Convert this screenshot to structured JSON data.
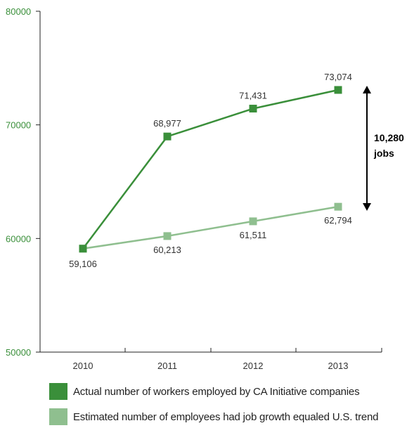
{
  "chart_data": {
    "type": "line",
    "categories": [
      "2010",
      "2011",
      "2012",
      "2013"
    ],
    "ylim": [
      50000,
      80000
    ],
    "yticks": [
      "50000",
      "60000",
      "70000",
      "80000"
    ],
    "series": [
      {
        "name": "Actual number of workers employed by CA Initiative companies",
        "values": [
          59106,
          68977,
          71431,
          73074
        ],
        "labels": [
          "59,106",
          "68,977",
          "71,431",
          "73,074"
        ],
        "color": "#3a8f3a"
      },
      {
        "name": "Estimated number of employees had job growth equaled U.S. trend",
        "values": [
          59106,
          60213,
          61511,
          62794
        ],
        "labels": [
          "",
          "60,213",
          "61,511",
          "62,794"
        ],
        "color": "#8fbf8f"
      }
    ],
    "annotation": {
      "line1": "10,280",
      "line2": "jobs"
    },
    "grid": false,
    "legend_position": "bottom-left"
  }
}
